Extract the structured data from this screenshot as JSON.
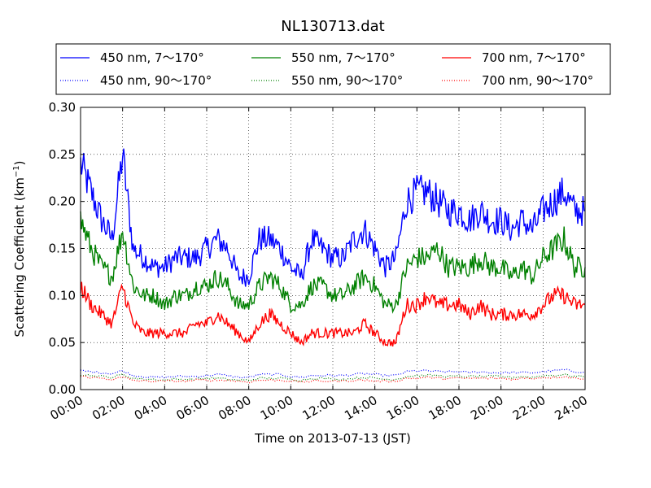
{
  "chart_data": {
    "type": "line",
    "title": "NL130713.dat",
    "xlabel": "Time on 2013-07-13 (JST)",
    "ylabel_main": "Scattering Coefficient (km",
    "ylabel_sup": "−1",
    "ylabel_tail": ")",
    "xlim_hours": [
      0,
      24
    ],
    "ylim": [
      0.0,
      0.3
    ],
    "xticks": [
      {
        "h": 0,
        "label": "00:00"
      },
      {
        "h": 2,
        "label": "02:00"
      },
      {
        "h": 4,
        "label": "04:00"
      },
      {
        "h": 6,
        "label": "06:00"
      },
      {
        "h": 8,
        "label": "08:00"
      },
      {
        "h": 10,
        "label": "10:00"
      },
      {
        "h": 12,
        "label": "12:00"
      },
      {
        "h": 14,
        "label": "14:00"
      },
      {
        "h": 16,
        "label": "16:00"
      },
      {
        "h": 18,
        "label": "18:00"
      },
      {
        "h": 20,
        "label": "20:00"
      },
      {
        "h": 22,
        "label": "22:00"
      },
      {
        "h": 24,
        "label": "24:00"
      }
    ],
    "yticks": [
      {
        "v": 0.0,
        "label": "0.00"
      },
      {
        "v": 0.05,
        "label": "0.05"
      },
      {
        "v": 0.1,
        "label": "0.10"
      },
      {
        "v": 0.15,
        "label": "0.15"
      },
      {
        "v": 0.2,
        "label": "0.20"
      },
      {
        "v": 0.25,
        "label": "0.25"
      },
      {
        "v": 0.3,
        "label": "0.30"
      }
    ],
    "grid": true,
    "legend_position": "top, above plot",
    "hours": [
      0,
      0.5,
      1,
      1.5,
      2,
      2.5,
      3,
      3.5,
      4,
      4.5,
      5,
      5.5,
      6,
      6.5,
      7,
      7.5,
      8,
      8.5,
      9,
      9.5,
      10,
      10.5,
      11,
      11.5,
      12,
      12.5,
      13,
      13.5,
      14,
      14.5,
      15,
      15.5,
      16,
      16.5,
      17,
      17.5,
      18,
      18.5,
      19,
      19.5,
      20,
      20.5,
      21,
      21.5,
      22,
      22.5,
      23,
      23.5,
      24
    ],
    "series": [
      {
        "name": "450 nm, 7～170°",
        "color": "#0000ff",
        "style": "solid",
        "values": [
          0.24,
          0.21,
          0.18,
          0.16,
          0.25,
          0.15,
          0.14,
          0.13,
          0.13,
          0.14,
          0.14,
          0.14,
          0.15,
          0.16,
          0.15,
          0.12,
          0.12,
          0.16,
          0.16,
          0.15,
          0.13,
          0.12,
          0.16,
          0.15,
          0.14,
          0.14,
          0.16,
          0.17,
          0.15,
          0.13,
          0.14,
          0.2,
          0.21,
          0.21,
          0.2,
          0.19,
          0.19,
          0.18,
          0.19,
          0.18,
          0.18,
          0.17,
          0.18,
          0.17,
          0.19,
          0.2,
          0.21,
          0.19,
          0.19
        ]
      },
      {
        "name": "450 nm, 90～170°",
        "color": "#0000ff",
        "style": "dotted",
        "values": [
          0.02,
          0.019,
          0.018,
          0.017,
          0.02,
          0.015,
          0.014,
          0.013,
          0.013,
          0.014,
          0.014,
          0.014,
          0.015,
          0.016,
          0.015,
          0.013,
          0.013,
          0.016,
          0.016,
          0.016,
          0.014,
          0.013,
          0.015,
          0.015,
          0.015,
          0.015,
          0.016,
          0.017,
          0.016,
          0.015,
          0.015,
          0.019,
          0.02,
          0.02,
          0.019,
          0.019,
          0.019,
          0.018,
          0.019,
          0.018,
          0.018,
          0.018,
          0.018,
          0.018,
          0.019,
          0.02,
          0.021,
          0.019,
          0.019
        ]
      },
      {
        "name": "550 nm, 7～170°",
        "color": "#008000",
        "style": "solid",
        "values": [
          0.18,
          0.15,
          0.13,
          0.12,
          0.17,
          0.11,
          0.1,
          0.1,
          0.09,
          0.1,
          0.1,
          0.11,
          0.11,
          0.12,
          0.11,
          0.09,
          0.09,
          0.11,
          0.12,
          0.11,
          0.09,
          0.09,
          0.11,
          0.11,
          0.1,
          0.1,
          0.11,
          0.12,
          0.11,
          0.09,
          0.09,
          0.13,
          0.14,
          0.14,
          0.15,
          0.13,
          0.13,
          0.13,
          0.14,
          0.13,
          0.13,
          0.12,
          0.13,
          0.12,
          0.14,
          0.15,
          0.16,
          0.13,
          0.13
        ]
      },
      {
        "name": "550 nm, 90～170°",
        "color": "#008000",
        "style": "dotted",
        "values": [
          0.016,
          0.015,
          0.014,
          0.013,
          0.016,
          0.012,
          0.011,
          0.011,
          0.01,
          0.011,
          0.011,
          0.011,
          0.012,
          0.012,
          0.011,
          0.01,
          0.01,
          0.012,
          0.012,
          0.012,
          0.011,
          0.01,
          0.012,
          0.012,
          0.011,
          0.011,
          0.012,
          0.013,
          0.012,
          0.011,
          0.011,
          0.014,
          0.015,
          0.015,
          0.015,
          0.014,
          0.014,
          0.014,
          0.014,
          0.014,
          0.014,
          0.013,
          0.014,
          0.013,
          0.015,
          0.015,
          0.016,
          0.014,
          0.014
        ]
      },
      {
        "name": "700 nm, 7～170°",
        "color": "#ff0000",
        "style": "solid",
        "values": [
          0.11,
          0.09,
          0.08,
          0.07,
          0.11,
          0.07,
          0.06,
          0.06,
          0.06,
          0.06,
          0.06,
          0.07,
          0.07,
          0.08,
          0.07,
          0.06,
          0.05,
          0.07,
          0.08,
          0.07,
          0.06,
          0.05,
          0.06,
          0.06,
          0.06,
          0.06,
          0.06,
          0.07,
          0.06,
          0.05,
          0.05,
          0.09,
          0.09,
          0.1,
          0.09,
          0.09,
          0.09,
          0.08,
          0.09,
          0.08,
          0.08,
          0.08,
          0.08,
          0.08,
          0.09,
          0.1,
          0.1,
          0.09,
          0.09
        ]
      },
      {
        "name": "700 nm, 90～170°",
        "color": "#ff0000",
        "style": "dotted",
        "values": [
          0.014,
          0.013,
          0.012,
          0.011,
          0.013,
          0.01,
          0.009,
          0.009,
          0.009,
          0.009,
          0.009,
          0.01,
          0.01,
          0.01,
          0.01,
          0.009,
          0.008,
          0.01,
          0.01,
          0.01,
          0.009,
          0.008,
          0.009,
          0.009,
          0.009,
          0.009,
          0.01,
          0.01,
          0.009,
          0.009,
          0.009,
          0.012,
          0.012,
          0.013,
          0.012,
          0.012,
          0.012,
          0.012,
          0.012,
          0.012,
          0.012,
          0.011,
          0.012,
          0.012,
          0.013,
          0.013,
          0.014,
          0.012,
          0.012
        ]
      }
    ]
  }
}
